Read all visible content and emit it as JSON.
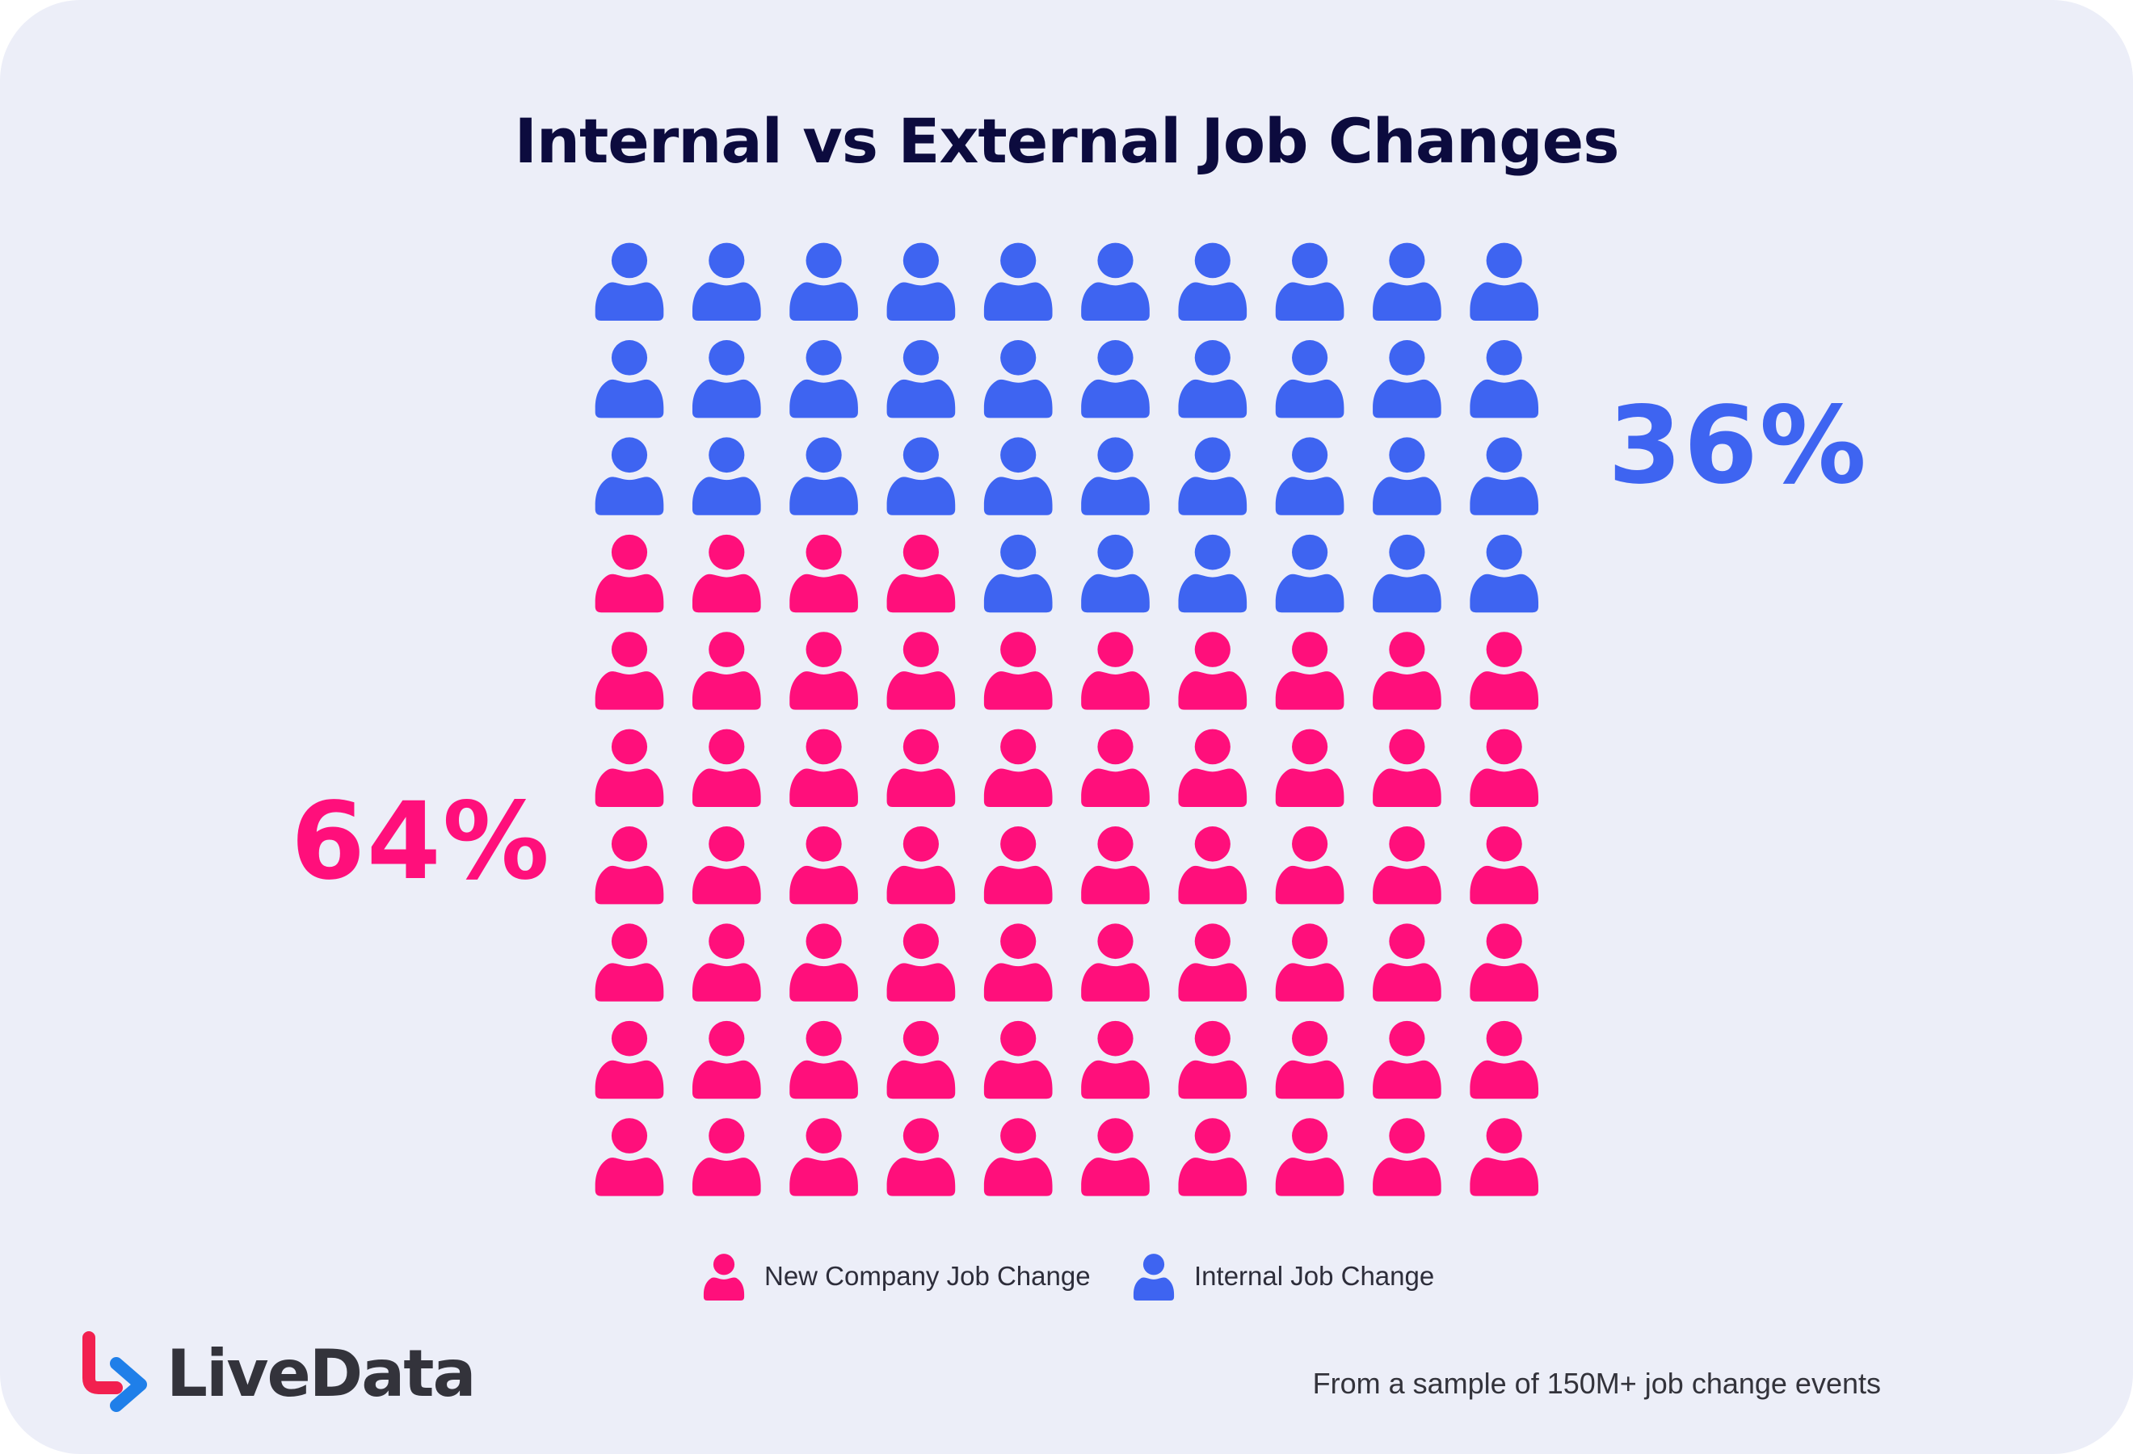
{
  "title": "Internal vs External Job Changes",
  "chart_data": {
    "type": "waffle",
    "grid": {
      "rows": 10,
      "cols": 10
    },
    "series": [
      {
        "name": "New Company Job Change",
        "value": 64,
        "label": "64%",
        "color": "#ff0f7b"
      },
      {
        "name": "Internal Job Change",
        "value": 36,
        "label": "36%",
        "color": "#3e64f1"
      }
    ],
    "fill_order": "bottom-up, right-to-left for Internal Job Change",
    "icon": "person-icon"
  },
  "labels": {
    "internal_pct": "36%",
    "new_pct": "64%"
  },
  "legend": {
    "new_label": "New Company Job Change",
    "internal_label": "Internal Job Change"
  },
  "brand": {
    "name": "LiveData",
    "logo_colors": [
      "#f2204f",
      "#1f7fe9"
    ]
  },
  "footnote": "From a sample of 150M+ job change events"
}
